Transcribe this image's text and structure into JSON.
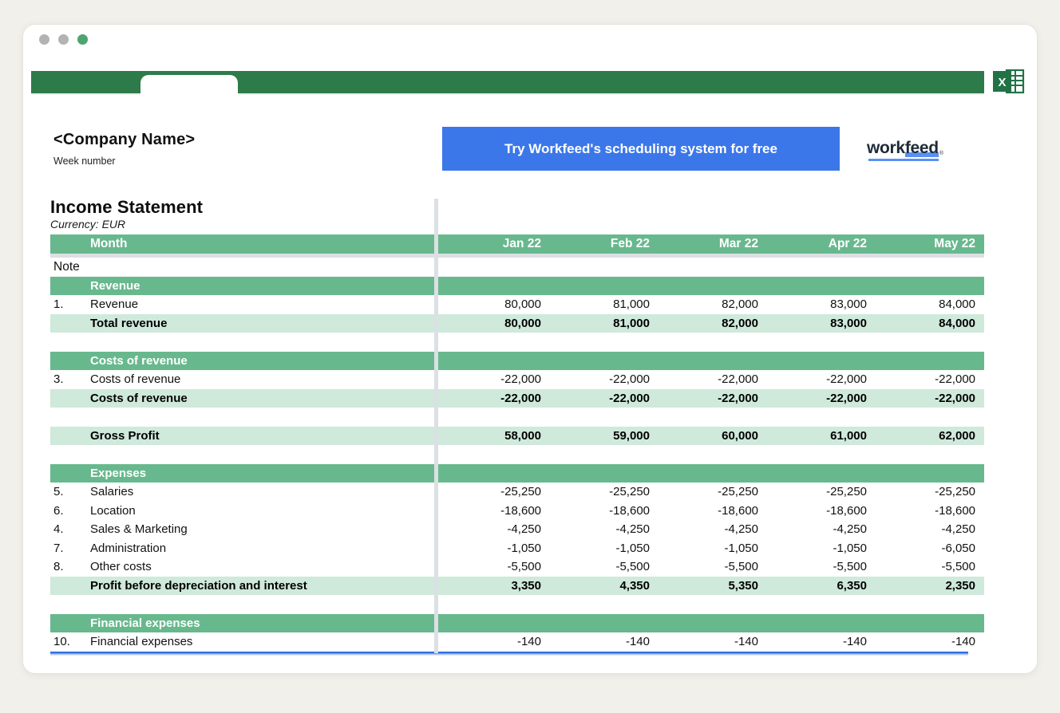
{
  "window": {
    "traffic_lights": [
      {
        "name": "window-dot-1",
        "color": "#b3b3b3"
      },
      {
        "name": "window-dot-2",
        "color": "#b3b3b3"
      },
      {
        "name": "window-dot-3",
        "color": "#4ca46f"
      }
    ]
  },
  "header": {
    "company_name": "<Company Name>",
    "week_label": "Week number",
    "cta_label": "Try Workfeed's scheduling system for free",
    "logo_text_left": "work",
    "logo_text_right": "feed",
    "logo_reg_mark": "®"
  },
  "excel_icon": {
    "letter": "X"
  },
  "sheet": {
    "title": "Income Statement",
    "subtitle": "Currency: EUR",
    "note_header": "Note",
    "columns": {
      "label": "Month",
      "months": [
        "Jan 22",
        "Feb 22",
        "Mar 22",
        "Apr 22",
        "May 22"
      ]
    },
    "rows": [
      {
        "type": "section",
        "label": "Revenue"
      },
      {
        "type": "item",
        "note": "1.",
        "label": "Revenue",
        "values": [
          "80,000",
          "81,000",
          "82,000",
          "83,000",
          "84,000"
        ]
      },
      {
        "type": "total",
        "label": "Total revenue",
        "values": [
          "80,000",
          "81,000",
          "82,000",
          "83,000",
          "84,000"
        ]
      },
      {
        "type": "blank"
      },
      {
        "type": "section",
        "label": "Costs of revenue"
      },
      {
        "type": "item",
        "note": "3.",
        "label": "Costs of revenue",
        "values": [
          "-22,000",
          "-22,000",
          "-22,000",
          "-22,000",
          "-22,000"
        ]
      },
      {
        "type": "total",
        "label": "Costs of revenue",
        "values": [
          "-22,000",
          "-22,000",
          "-22,000",
          "-22,000",
          "-22,000"
        ]
      },
      {
        "type": "blank"
      },
      {
        "type": "total",
        "label": "Gross Profit",
        "values": [
          "58,000",
          "59,000",
          "60,000",
          "61,000",
          "62,000"
        ]
      },
      {
        "type": "blank"
      },
      {
        "type": "section",
        "label": "Expenses"
      },
      {
        "type": "item",
        "note": "5.",
        "label": "Salaries",
        "values": [
          "-25,250",
          "-25,250",
          "-25,250",
          "-25,250",
          "-25,250"
        ]
      },
      {
        "type": "item",
        "note": "6.",
        "label": "Location",
        "values": [
          "-18,600",
          "-18,600",
          "-18,600",
          "-18,600",
          "-18,600"
        ]
      },
      {
        "type": "item",
        "note": "4.",
        "label": "Sales & Marketing",
        "values": [
          "-4,250",
          "-4,250",
          "-4,250",
          "-4,250",
          "-4,250"
        ]
      },
      {
        "type": "item",
        "note": "7.",
        "label": "Administration",
        "values": [
          "-1,050",
          "-1,050",
          "-1,050",
          "-1,050",
          "-6,050"
        ]
      },
      {
        "type": "item",
        "note": "8.",
        "label": "Other costs",
        "values": [
          "-5,500",
          "-5,500",
          "-5,500",
          "-5,500",
          "-5,500"
        ]
      },
      {
        "type": "total",
        "label": "Profit before depreciation and interest",
        "values": [
          "3,350",
          "4,350",
          "5,350",
          "6,350",
          "2,350"
        ]
      },
      {
        "type": "blank"
      },
      {
        "type": "section",
        "label": "Financial expenses"
      },
      {
        "type": "item",
        "note": "10.",
        "label": "Financial expenses",
        "values": [
          "-140",
          "-140",
          "-140",
          "-140",
          "-140"
        ]
      }
    ]
  },
  "colors": {
    "topbar_green": "#2d7b49",
    "band_green": "#68b88e",
    "band_light_green": "#cfe9db",
    "cta_blue": "#3b77e9",
    "logo_underline_blue": "#5a90f5",
    "pane_divider_gray": "#dce0e4",
    "selection_blue": "#3070e2",
    "excel_green": "#217346"
  }
}
